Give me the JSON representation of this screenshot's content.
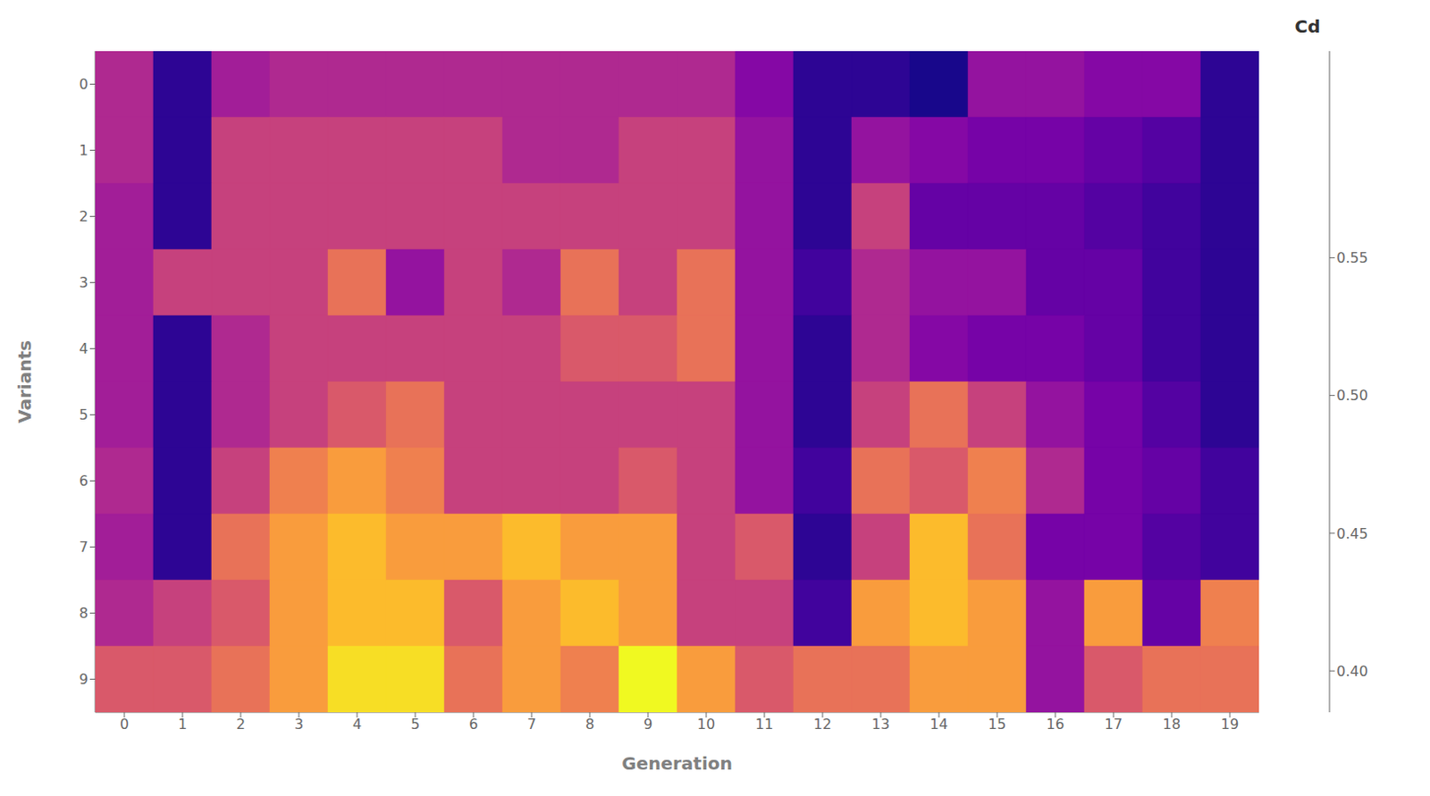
{
  "chart_data": {
    "type": "heatmap",
    "xlabel": "Generation",
    "ylabel": "Variants",
    "x": [
      0,
      1,
      2,
      3,
      4,
      5,
      6,
      7,
      8,
      9,
      10,
      11,
      12,
      13,
      14,
      15,
      16,
      17,
      18,
      19
    ],
    "y": [
      0,
      1,
      2,
      3,
      4,
      5,
      6,
      7,
      8,
      9
    ],
    "xlim": [
      -0.5,
      19.5
    ],
    "ylim": [
      9.5,
      -0.5
    ],
    "xticks": [
      0,
      1,
      2,
      3,
      4,
      5,
      6,
      7,
      8,
      9,
      10,
      11,
      12,
      13,
      14,
      15,
      16,
      17,
      18,
      19
    ],
    "yticks": [
      0,
      1,
      2,
      3,
      4,
      5,
      6,
      7,
      8,
      9
    ],
    "values": [
      [
        0.48,
        0.4,
        0.47,
        0.48,
        0.48,
        0.48,
        0.48,
        0.48,
        0.48,
        0.48,
        0.48,
        0.45,
        0.4,
        0.4,
        0.39,
        0.46,
        0.46,
        0.45,
        0.45,
        0.4
      ],
      [
        0.48,
        0.4,
        0.5,
        0.5,
        0.5,
        0.5,
        0.5,
        0.48,
        0.48,
        0.5,
        0.5,
        0.46,
        0.4,
        0.46,
        0.45,
        0.44,
        0.44,
        0.43,
        0.42,
        0.4
      ],
      [
        0.47,
        0.4,
        0.5,
        0.5,
        0.5,
        0.5,
        0.5,
        0.5,
        0.5,
        0.5,
        0.5,
        0.46,
        0.4,
        0.5,
        0.43,
        0.43,
        0.43,
        0.42,
        0.41,
        0.4
      ],
      [
        0.47,
        0.5,
        0.5,
        0.5,
        0.54,
        0.46,
        0.5,
        0.48,
        0.54,
        0.5,
        0.54,
        0.46,
        0.41,
        0.48,
        0.46,
        0.46,
        0.43,
        0.43,
        0.41,
        0.4
      ],
      [
        0.47,
        0.4,
        0.48,
        0.5,
        0.5,
        0.5,
        0.5,
        0.5,
        0.52,
        0.52,
        0.54,
        0.46,
        0.4,
        0.48,
        0.45,
        0.44,
        0.44,
        0.43,
        0.41,
        0.4
      ],
      [
        0.47,
        0.4,
        0.48,
        0.5,
        0.52,
        0.54,
        0.5,
        0.5,
        0.5,
        0.5,
        0.5,
        0.46,
        0.4,
        0.5,
        0.54,
        0.5,
        0.46,
        0.44,
        0.42,
        0.4
      ],
      [
        0.48,
        0.4,
        0.5,
        0.55,
        0.57,
        0.55,
        0.5,
        0.5,
        0.5,
        0.52,
        0.5,
        0.46,
        0.41,
        0.54,
        0.52,
        0.55,
        0.48,
        0.44,
        0.43,
        0.41
      ],
      [
        0.47,
        0.4,
        0.54,
        0.57,
        0.59,
        0.57,
        0.57,
        0.59,
        0.57,
        0.57,
        0.5,
        0.52,
        0.4,
        0.5,
        0.59,
        0.54,
        0.44,
        0.44,
        0.42,
        0.41
      ],
      [
        0.48,
        0.5,
        0.52,
        0.57,
        0.59,
        0.59,
        0.52,
        0.57,
        0.59,
        0.57,
        0.5,
        0.5,
        0.41,
        0.57,
        0.59,
        0.57,
        0.46,
        0.57,
        0.43,
        0.55
      ],
      [
        0.52,
        0.52,
        0.54,
        0.57,
        0.61,
        0.61,
        0.54,
        0.57,
        0.55,
        0.63,
        0.57,
        0.52,
        0.54,
        0.54,
        0.57,
        0.57,
        0.46,
        0.52,
        0.54,
        0.54
      ]
    ],
    "colorbar_label": "Cd",
    "colorbar_range": [
      0.385,
      0.625
    ],
    "colorbar_ticks": [
      {
        "value": 0.4,
        "label": "0.40"
      },
      {
        "value": 0.45,
        "label": "0.45"
      },
      {
        "value": 0.5,
        "label": "0.50"
      },
      {
        "value": 0.55,
        "label": "0.55"
      }
    ]
  }
}
